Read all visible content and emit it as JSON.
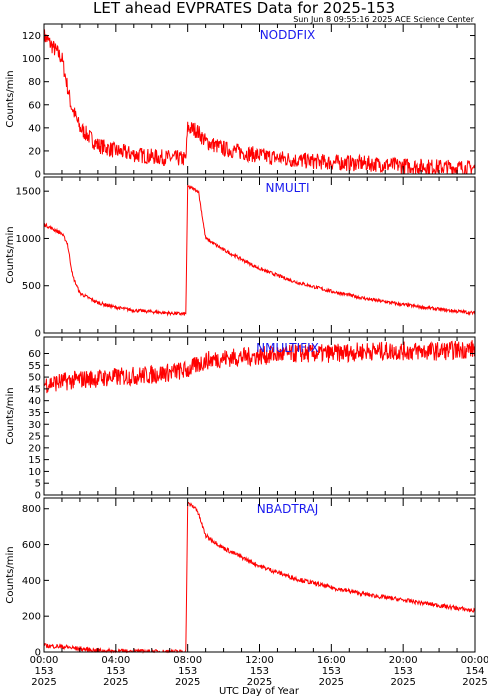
{
  "title": "LET ahead EVPRATES Data for 2025-153",
  "subtitle": "Sun Jun  8 09:55:16 2025 ACE Science Center",
  "xlabel": "UTC Day of Year",
  "colors": {
    "series": "#ff0000",
    "panel_label": "#1a1aee",
    "axes": "#000000"
  },
  "chart_data": [
    {
      "type": "line",
      "panel_label": "NODDFIX",
      "ylabel": "Counts/min",
      "ylim": [
        0,
        130
      ],
      "yticks": [
        0,
        20,
        40,
        60,
        80,
        100,
        120
      ],
      "x": [
        0,
        0.5,
        1,
        1.5,
        2,
        3,
        4,
        5,
        6,
        7,
        7.9,
        8.0,
        8.5,
        9,
        10,
        12,
        14,
        16,
        18,
        20,
        22,
        24
      ],
      "values": [
        120,
        110,
        100,
        60,
        40,
        25,
        20,
        17,
        15,
        14,
        13,
        40,
        38,
        28,
        22,
        16,
        12,
        10,
        9,
        7,
        6,
        5
      ],
      "noise": 7
    },
    {
      "type": "line",
      "panel_label": "NMULTI",
      "ylabel": "Counts/min",
      "ylim": [
        0,
        1650
      ],
      "yticks": [
        0,
        500,
        1000,
        1500
      ],
      "x": [
        0,
        1,
        1.3,
        1.6,
        2,
        3,
        4,
        5,
        6,
        7,
        7.9,
        8.0,
        8.6,
        9.0,
        10,
        12,
        14,
        16,
        18,
        20,
        22,
        24
      ],
      "values": [
        1150,
        1050,
        950,
        600,
        420,
        320,
        270,
        240,
        225,
        210,
        200,
        1550,
        1500,
        1000,
        880,
        680,
        540,
        440,
        360,
        300,
        250,
        210
      ],
      "noise": 18
    },
    {
      "type": "line",
      "panel_label": "NMULTIFIX",
      "ylabel": "Counts/min",
      "ylim": [
        0,
        67
      ],
      "yticks": [
        0,
        5,
        10,
        15,
        20,
        25,
        30,
        35,
        40,
        45,
        50,
        55,
        60
      ],
      "x": [
        0,
        1,
        2,
        4,
        6,
        8,
        9,
        10,
        12,
        14,
        16,
        18,
        20,
        22,
        24
      ],
      "values": [
        47,
        48,
        49,
        50,
        51,
        53,
        57,
        58,
        59,
        60,
        60,
        61,
        61,
        61,
        62
      ],
      "noise": 4
    },
    {
      "type": "line",
      "panel_label": "NBADTRAJ",
      "ylabel": "Counts/min",
      "ylim": [
        0,
        860
      ],
      "yticks": [
        0,
        200,
        400,
        600,
        800
      ],
      "x": [
        0,
        1,
        2,
        3,
        4,
        5,
        6,
        7,
        7.9,
        8.0,
        8.5,
        9.0,
        10,
        12,
        14,
        16,
        18,
        20,
        22,
        24
      ],
      "values": [
        35,
        30,
        18,
        8,
        4,
        3,
        2,
        2,
        2,
        830,
        800,
        650,
        580,
        480,
        410,
        360,
        320,
        290,
        260,
        230
      ],
      "noise": 12
    }
  ],
  "xaxis": {
    "range_hours": [
      0,
      24
    ],
    "ticks": [
      {
        "hour": 0,
        "time": "00:00",
        "doy": "153",
        "year": "2025"
      },
      {
        "hour": 4,
        "time": "04:00",
        "doy": "153",
        "year": "2025"
      },
      {
        "hour": 8,
        "time": "08:00",
        "doy": "153",
        "year": "2025"
      },
      {
        "hour": 12,
        "time": "12:00",
        "doy": "153",
        "year": "2025"
      },
      {
        "hour": 16,
        "time": "16:00",
        "doy": "153",
        "year": "2025"
      },
      {
        "hour": 20,
        "time": "20:00",
        "doy": "153",
        "year": "2025"
      },
      {
        "hour": 24,
        "time": "00:00",
        "doy": "154",
        "year": "2025"
      }
    ]
  }
}
